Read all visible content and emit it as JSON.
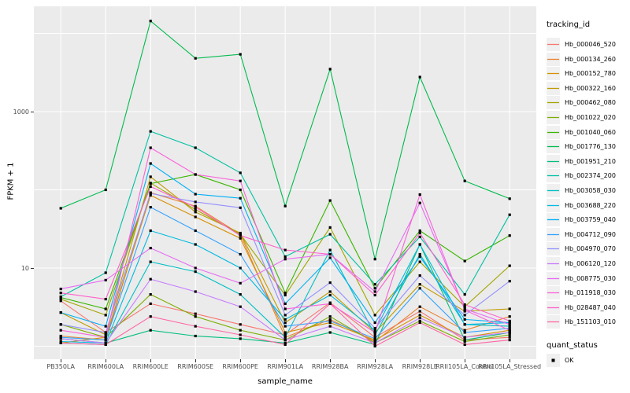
{
  "axes": {
    "y": {
      "title": "FPKM + 1",
      "scale": "log10",
      "ticks": [
        {
          "label": "1000",
          "value": 1000
        },
        {
          "label": "10",
          "value": 10
        }
      ]
    },
    "x": {
      "title": "sample_name"
    }
  },
  "legend": {
    "tracking_title": "tracking_id",
    "quant_title": "quant_status",
    "quant_items": [
      {
        "label": "OK"
      }
    ]
  },
  "style": {
    "panel_bg": "#EBEBEB",
    "grid_color": "#FFFFFF",
    "marker_color": "#000000",
    "tick_label_color": "#4D4D4D"
  },
  "chart_data": {
    "type": "line",
    "title": "",
    "xlabel": "sample_name",
    "ylabel": "FPKM + 1",
    "y_scale": "log10",
    "ylim": [
      0.7,
      22000
    ],
    "grid": true,
    "legend_position": "right",
    "marker": "black-square",
    "categories": [
      "PB350LA",
      "RRIM600LA",
      "RRIM600LE",
      "RRIM600SE",
      "RRIM600PE",
      "RRIM901LA",
      "RRIM928BA",
      "RRIM928LA",
      "RRIM928LE",
      "RRII105LA_Control",
      "RRII105LA_Stressed"
    ],
    "series": [
      {
        "name": "Hb_000046_520",
        "color": "#F8766D",
        "values": [
          3.8,
          1.5,
          3.5,
          2.6,
          1.9,
          1.4,
          3.6,
          1.3,
          2.8,
          1.2,
          1.3
        ]
      },
      {
        "name": "Hb_000134_260",
        "color": "#EA8331",
        "values": [
          1.35,
          1.2,
          92,
          62,
          27,
          1.3,
          2.2,
          1.15,
          3.2,
          1.6,
          2.4
        ]
      },
      {
        "name": "Hb_000152_780",
        "color": "#D89000",
        "values": [
          1.1,
          1.3,
          85,
          45,
          24,
          1.5,
          2.0,
          1.2,
          2.5,
          1.3,
          1.6
        ]
      },
      {
        "name": "Hb_000322_160",
        "color": "#C09B00",
        "values": [
          2.7,
          1.4,
          147,
          52,
          28,
          2.0,
          5.0,
          1.5,
          6.2,
          2.8,
          3.0
        ]
      },
      {
        "name": "Hb_000462_080",
        "color": "#A3A500",
        "values": [
          4.0,
          2.5,
          122,
          56,
          27,
          4.5,
          33,
          2.5,
          12,
          3.2,
          10.7
        ]
      },
      {
        "name": "Hb_001022_020",
        "color": "#7CAE00",
        "values": [
          1.9,
          1.3,
          4.6,
          2.4,
          1.6,
          1.2,
          2.4,
          1.1,
          2.1,
          1.15,
          1.4
        ]
      },
      {
        "name": "Hb_001040_060",
        "color": "#39B600",
        "values": [
          4.2,
          3.0,
          120,
          157,
          100,
          4.8,
          73,
          5.5,
          30,
          12.3,
          26
        ]
      },
      {
        "name": "Hb_001776_130",
        "color": "#00BB4E",
        "values": [
          58,
          100,
          14400,
          4800,
          5400,
          62,
          3500,
          13,
          2770,
          130,
          77
        ]
      },
      {
        "name": "Hb_001951_210",
        "color": "#00BF7D",
        "values": [
          1.25,
          1.1,
          1.6,
          1.35,
          1.25,
          1.1,
          1.5,
          1.05,
          20,
          1.2,
          1.5
        ]
      },
      {
        "name": "Hb_002374_200",
        "color": "#00C1A3",
        "values": [
          4.3,
          8.7,
          560,
          345,
          165,
          14,
          27,
          6.2,
          25,
          4.6,
          48
        ]
      },
      {
        "name": "Hb_003058_030",
        "color": "#00BFC4",
        "values": [
          1.1,
          1.05,
          12,
          9,
          4.6,
          1.3,
          17,
          1.4,
          15,
          1.9,
          1.8
        ]
      },
      {
        "name": "Hb_003688_220",
        "color": "#00BAE0",
        "values": [
          1.15,
          1.1,
          30,
          20,
          10,
          2.2,
          4.5,
          1.6,
          20,
          1.9,
          2.0
        ]
      },
      {
        "name": "Hb_003759_040",
        "color": "#00B0F6",
        "values": [
          2.7,
          1.8,
          217,
          88,
          78,
          3.5,
          13.5,
          2.0,
          14,
          2.2,
          2.0
        ]
      },
      {
        "name": "Hb_004712_090",
        "color": "#35A2FF",
        "values": [
          1.3,
          1.2,
          60,
          30,
          15,
          1.8,
          2.1,
          1.25,
          5.5,
          1.5,
          1.7
        ]
      },
      {
        "name": "Hb_004970_070",
        "color": "#9590FF",
        "values": [
          1.9,
          1.5,
          90,
          70,
          59,
          2.5,
          6.5,
          1.7,
          8.0,
          2.5,
          6.8
        ]
      },
      {
        "name": "Hb_006120_120",
        "color": "#C77CFF",
        "values": [
          1.25,
          1.1,
          7.2,
          5.0,
          3.2,
          1.2,
          1.8,
          1.1,
          2.3,
          1.3,
          1.5
        ]
      },
      {
        "name": "Hb_008775_030",
        "color": "#E76BF3",
        "values": [
          5.4,
          7.0,
          18,
          10,
          6.4,
          13,
          15,
          5.0,
          68,
          3.0,
          1.9
        ]
      },
      {
        "name": "Hb_011918_030",
        "color": "#FA62DB",
        "values": [
          1.6,
          1.3,
          345,
          157,
          130,
          3.0,
          3.5,
          1.5,
          87,
          2.9,
          1.6
        ]
      },
      {
        "name": "Hb_028487_040",
        "color": "#FF61CC",
        "values": [
          4.8,
          4.0,
          110,
          60,
          26,
          17,
          15,
          4.5,
          28,
          3.4,
          2.1
        ]
      },
      {
        "name": "Hb_151103_010",
        "color": "#FF67A4",
        "values": [
          1.1,
          1.05,
          2.4,
          1.8,
          1.4,
          1.05,
          3.5,
          1.0,
          2.0,
          1.05,
          1.2
        ]
      }
    ]
  }
}
